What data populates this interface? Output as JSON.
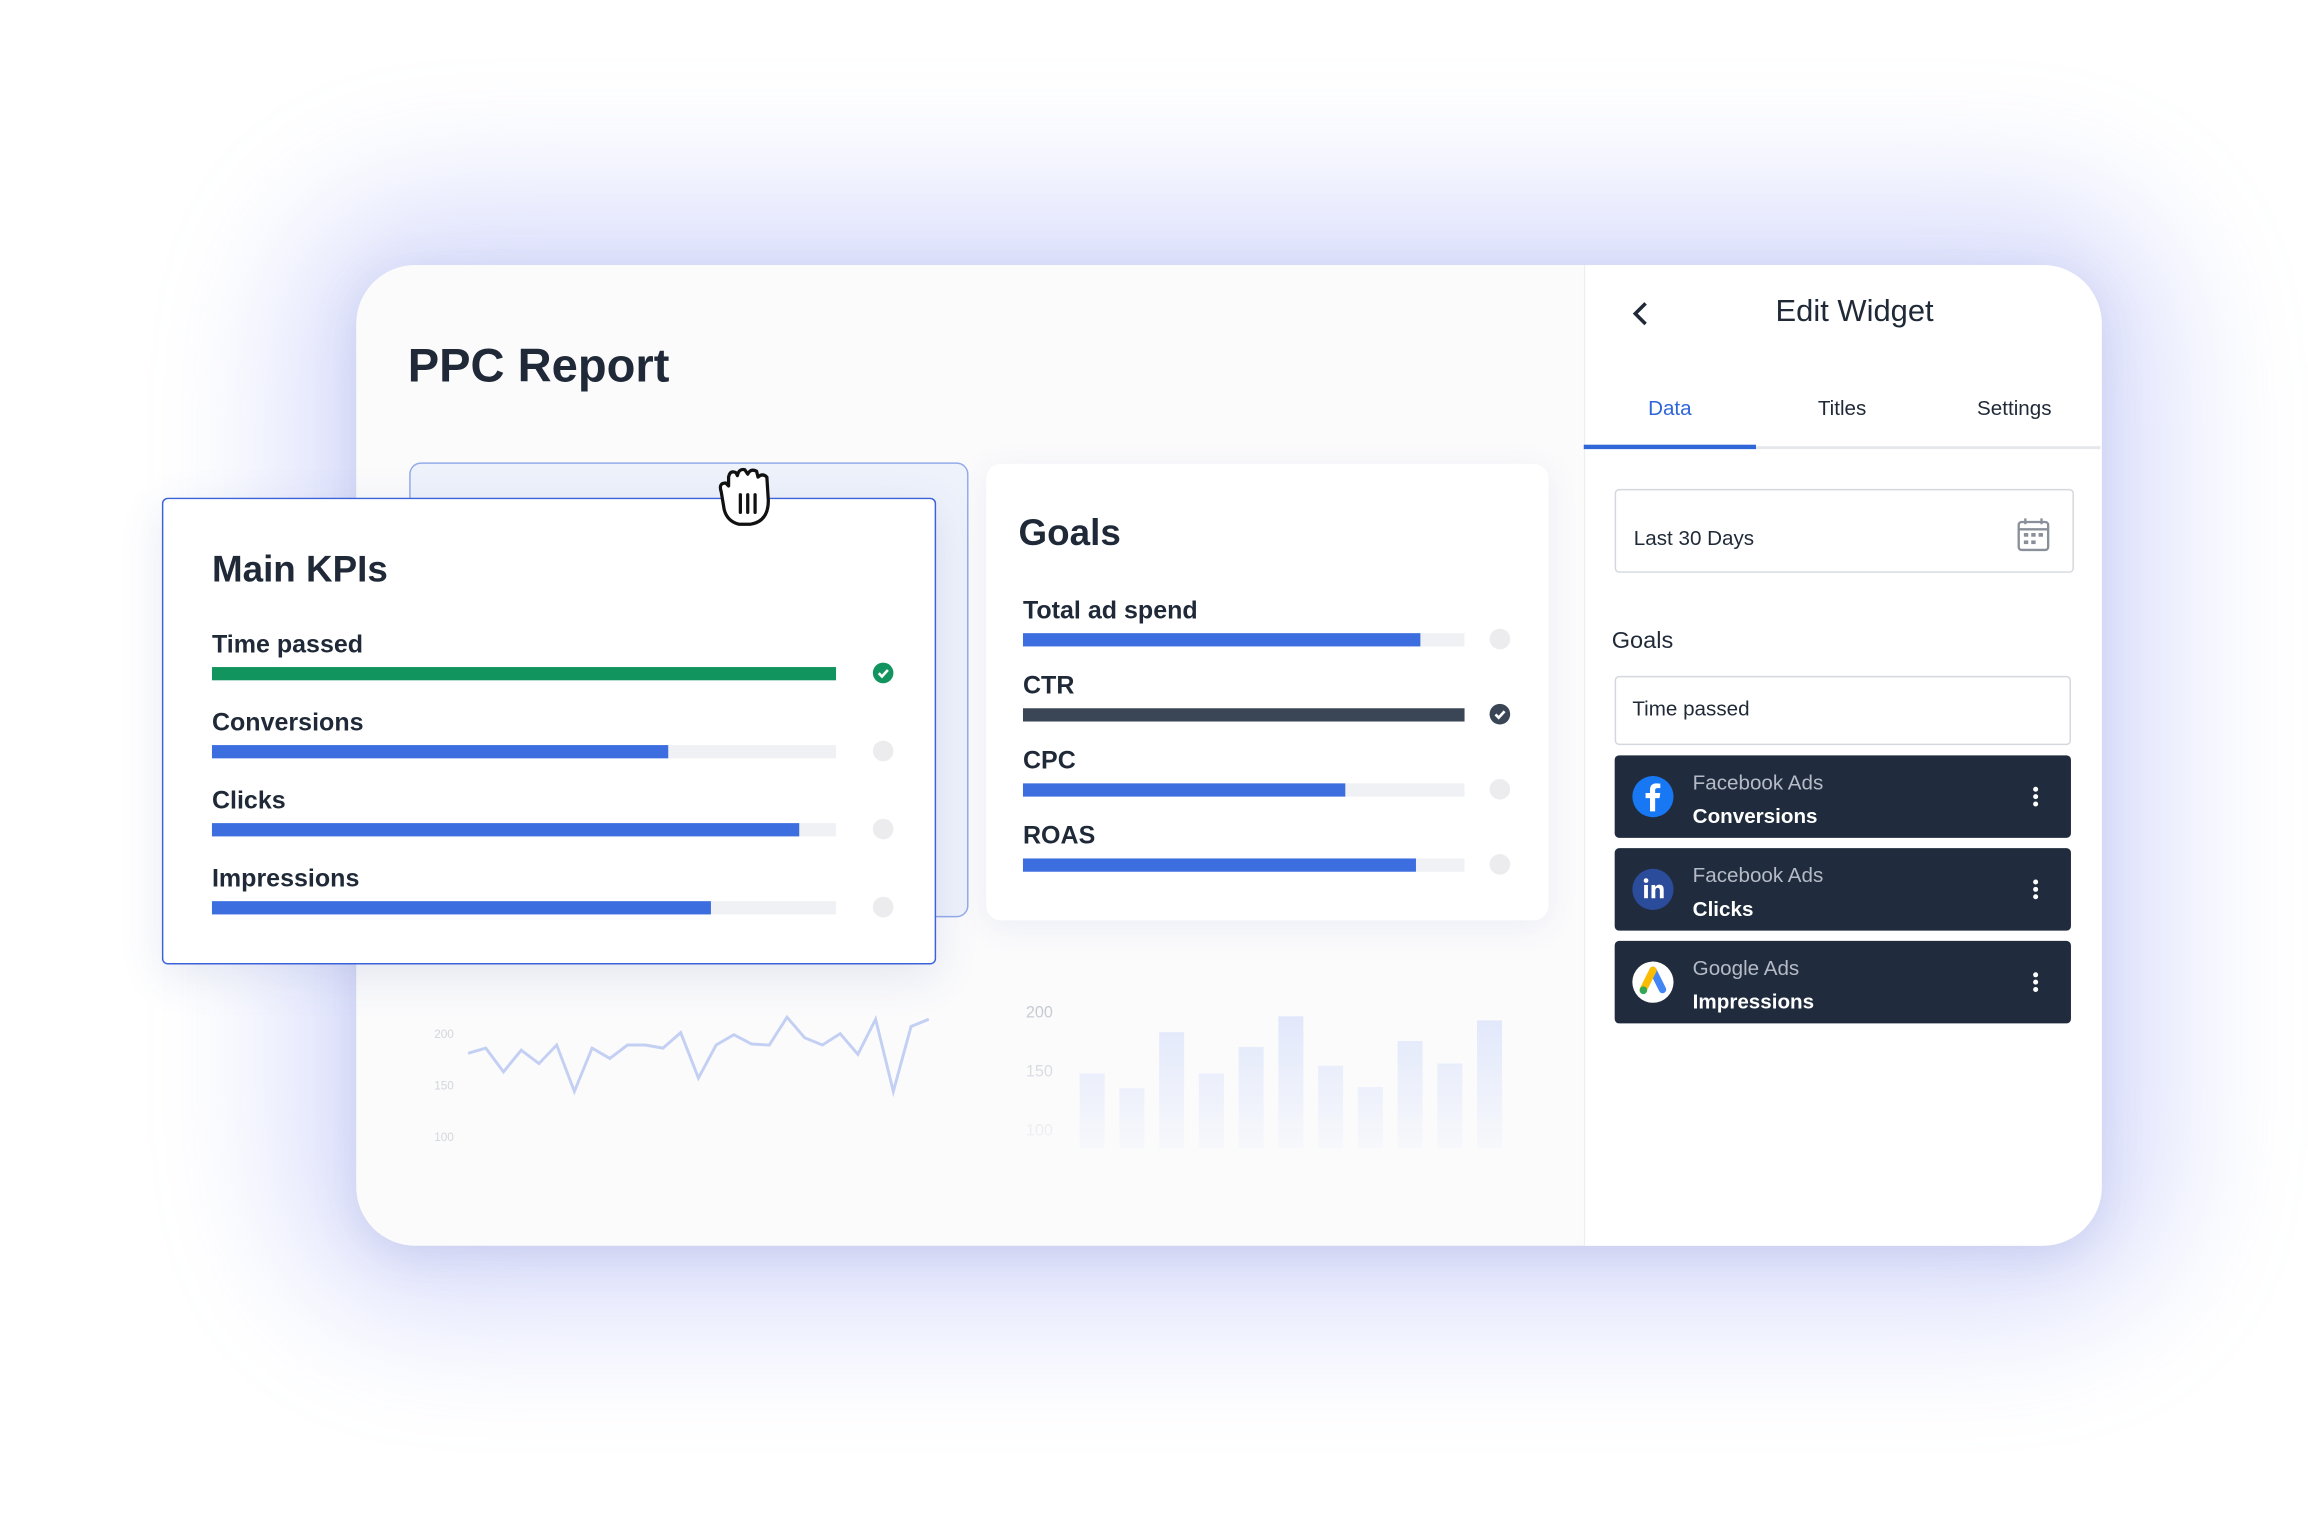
{
  "header": {
    "title": "PPC Report"
  },
  "kpi_card": {
    "title": "Main KPIs",
    "items": [
      {
        "label": "Time passed",
        "progress": 100,
        "color": "#12945f",
        "done": true
      },
      {
        "label": "Conversions",
        "progress": 73,
        "color": "#3c6ee0",
        "done": false
      },
      {
        "label": "Clicks",
        "progress": 94,
        "color": "#3c6ee0",
        "done": false
      },
      {
        "label": "Impressions",
        "progress": 80,
        "color": "#3c6ee0",
        "done": false
      }
    ]
  },
  "goals_card": {
    "title": "Goals",
    "items": [
      {
        "label": "Total ad spend",
        "progress": 90,
        "color": "#3c6ee0",
        "done": false
      },
      {
        "label": "CTR",
        "progress": 100,
        "color": "#3a4556",
        "done": true
      },
      {
        "label": "CPC",
        "progress": 73,
        "color": "#3c6ee0",
        "done": false
      },
      {
        "label": "ROAS",
        "progress": 89,
        "color": "#3c6ee0",
        "done": false
      }
    ]
  },
  "background_charts": {
    "line": {
      "type": "line",
      "ylim": [
        100,
        260
      ],
      "yticks": [
        200,
        150,
        100
      ],
      "color": "#9fb5ee",
      "values": [
        181,
        186,
        163,
        184,
        171,
        189,
        144,
        186,
        176,
        189,
        189,
        186,
        201,
        157,
        189,
        199,
        190,
        189,
        216,
        196,
        189,
        200,
        180,
        214,
        144,
        207,
        214
      ]
    },
    "bar": {
      "type": "bar",
      "ylim": [
        100,
        225
      ],
      "yticks": [
        200,
        150,
        100
      ],
      "color": "#d9e2fa",
      "values": [
        147.5,
        135,
        182.5,
        147.5,
        170,
        196,
        154,
        136,
        175,
        156,
        192.5
      ]
    }
  },
  "panel": {
    "title": "Edit Widget",
    "tabs": [
      "Data",
      "Titles",
      "Settings"
    ],
    "active_tab": 0,
    "date_range": "Last 30 Days",
    "goals_title": "Goals",
    "goals": [
      "Time passed"
    ],
    "sources": [
      {
        "source": "Facebook Ads",
        "metric": "Conversions"
      },
      {
        "source": "Facebook Ads",
        "metric": "Clicks"
      },
      {
        "source": "Google Ads",
        "metric": "Impressions"
      }
    ]
  }
}
